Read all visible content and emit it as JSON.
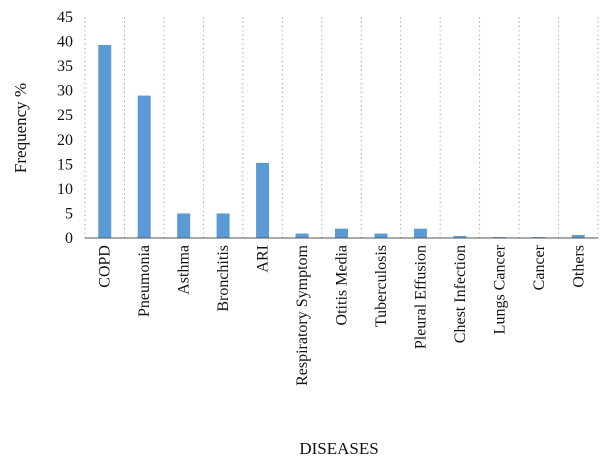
{
  "chart_data": {
    "type": "bar",
    "xlabel": "DISEASES",
    "ylabel": "Frequency %",
    "ylim": [
      0,
      45
    ],
    "yticks": [
      0,
      5,
      10,
      15,
      20,
      25,
      30,
      35,
      40,
      45
    ],
    "grid": "vertical dotted",
    "bar_color": "#5b9bd5",
    "categories": [
      "COPD",
      "Pneumonia",
      "Asthma",
      "Bronchitis",
      "ARI",
      "Respiratory Symptom",
      "Otitis Media",
      "Tuberculosis",
      "Pleural Effusion",
      "Chest Infection",
      "Lungs Cancer",
      "Cancer",
      "Others"
    ],
    "values": [
      39.3,
      29,
      5,
      5,
      15.3,
      0.9,
      1.9,
      0.9,
      1.9,
      0.4,
      0.2,
      0.2,
      0.6
    ]
  }
}
